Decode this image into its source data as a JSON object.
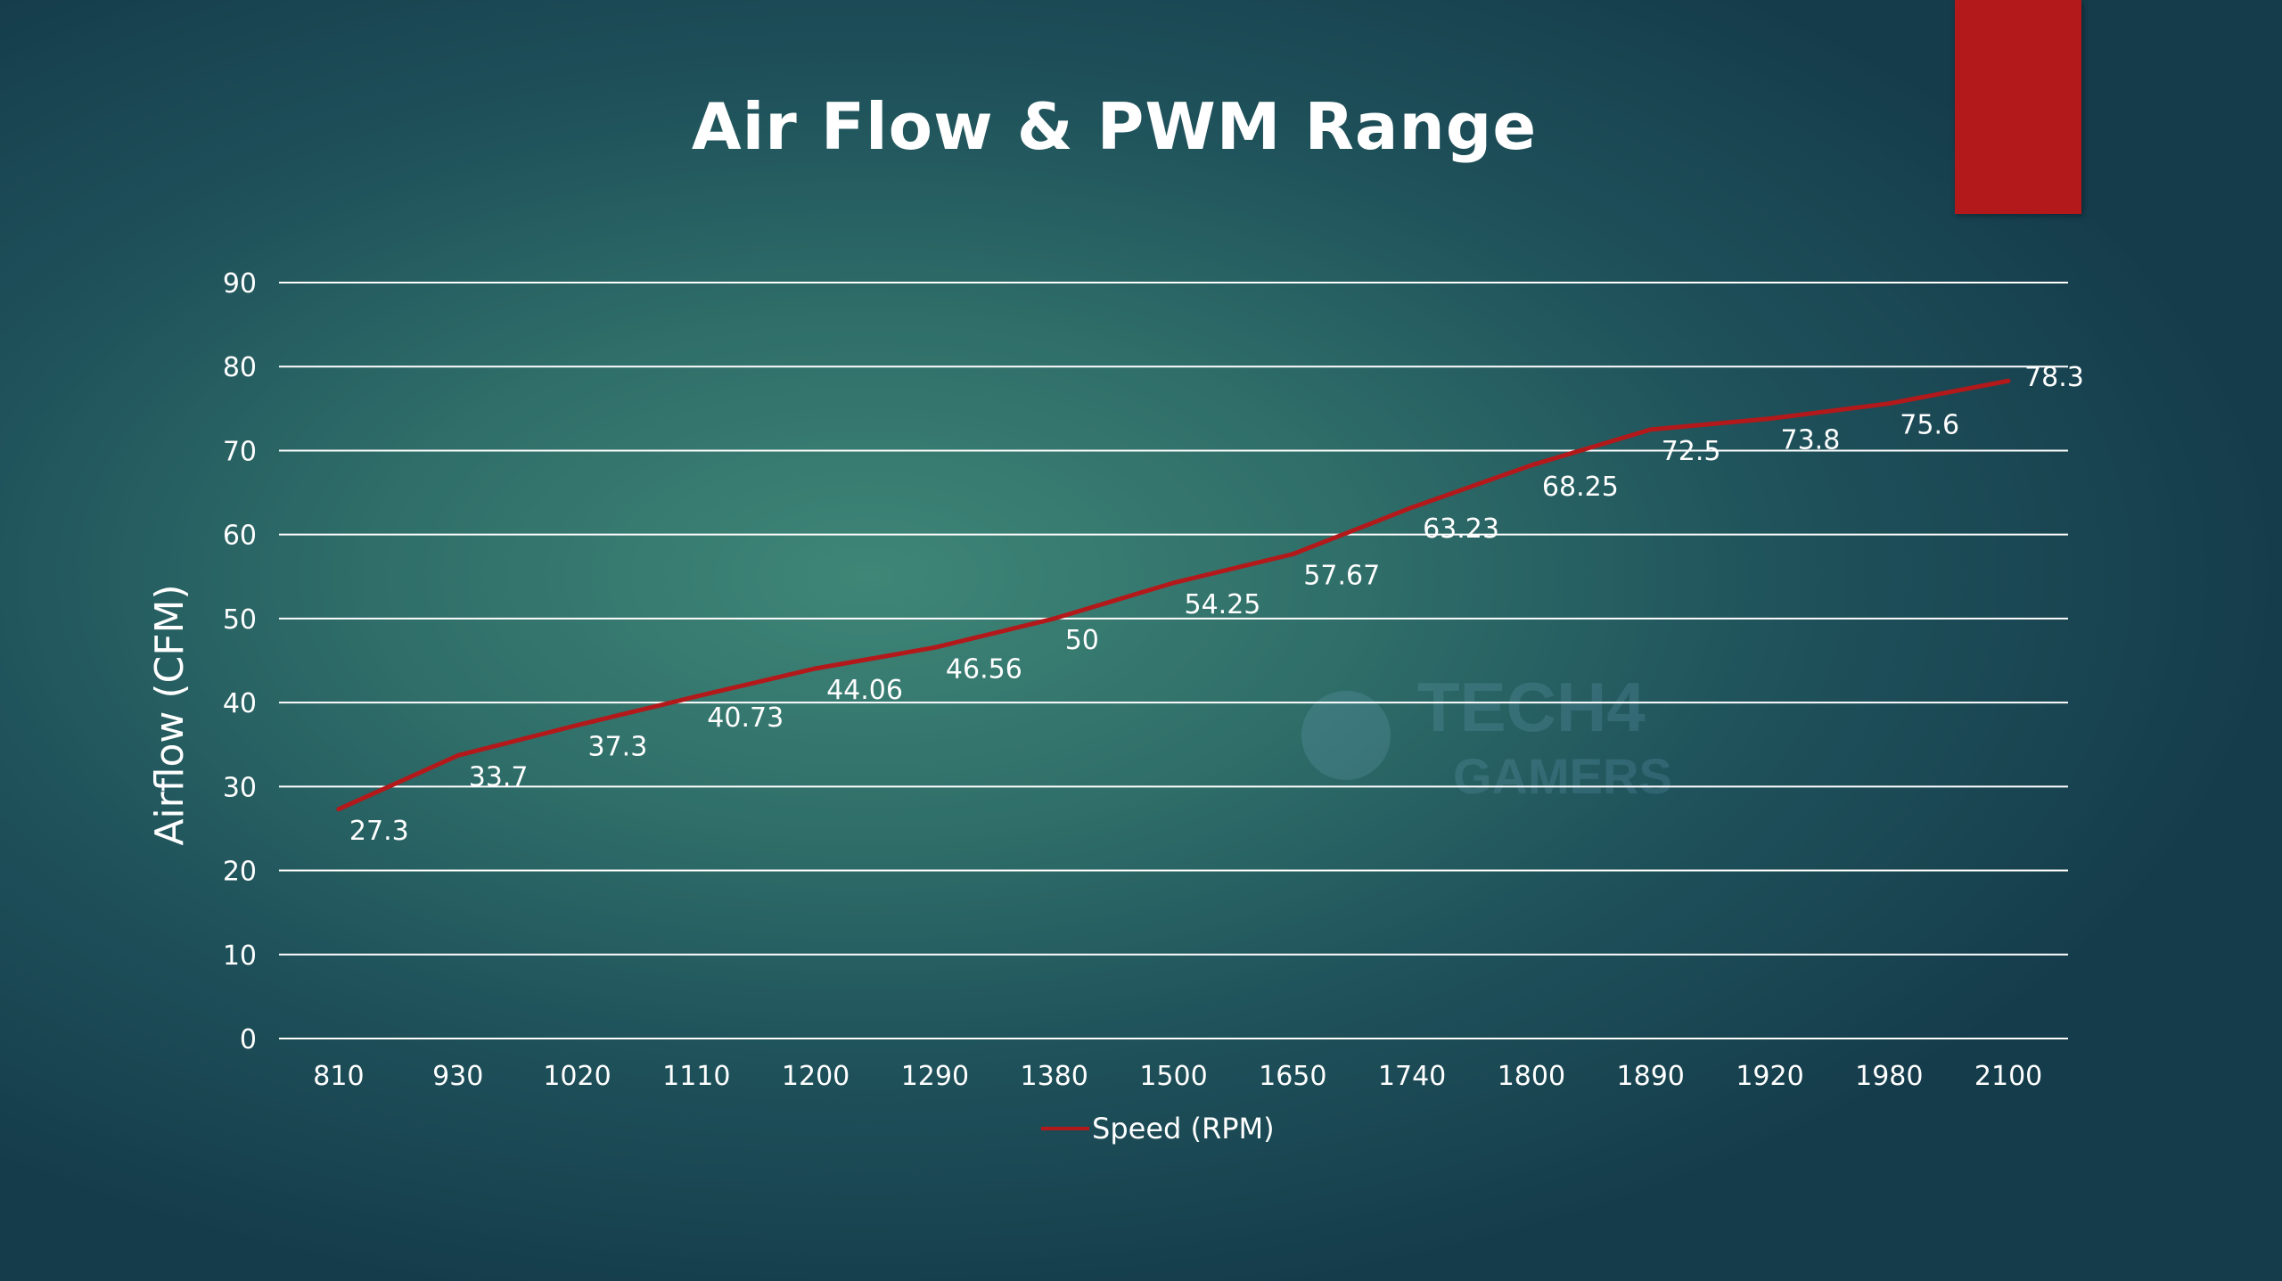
{
  "colors": {
    "line": "#b3191a",
    "accent_bar": "#b3191a",
    "grid": "#ffffff",
    "text": "#ffffff"
  },
  "chart_data": {
    "type": "line",
    "title": "Air Flow & PWM Range",
    "xlabel": "",
    "ylabel": "Airflow (CFM)",
    "ylim": [
      0,
      90
    ],
    "yticks": [
      "0",
      "10",
      "20",
      "30",
      "40",
      "50",
      "60",
      "70",
      "80",
      "90"
    ],
    "categories": [
      "810",
      "930",
      "1020",
      "1110",
      "1200",
      "1290",
      "1380",
      "1500",
      "1650",
      "1740",
      "1800",
      "1890",
      "1920",
      "1980",
      "2100"
    ],
    "series": [
      {
        "name": "Speed (RPM)",
        "values": [
          27.3,
          33.7,
          37.3,
          40.73,
          44.06,
          46.56,
          50,
          54.25,
          57.67,
          63.23,
          68.25,
          72.5,
          73.8,
          75.6,
          78.3
        ],
        "labels": [
          "27.3",
          "33.7",
          "37.3",
          "40.73",
          "44.06",
          "46.56",
          "50",
          "54.25",
          "57.67",
          "63.23",
          "68.25",
          "72.5",
          "73.8",
          "75.6",
          "78.3"
        ]
      }
    ],
    "grid": true,
    "legend": "bottom"
  },
  "watermark": {
    "line1": "TECH4",
    "line2": "GAMERS"
  }
}
